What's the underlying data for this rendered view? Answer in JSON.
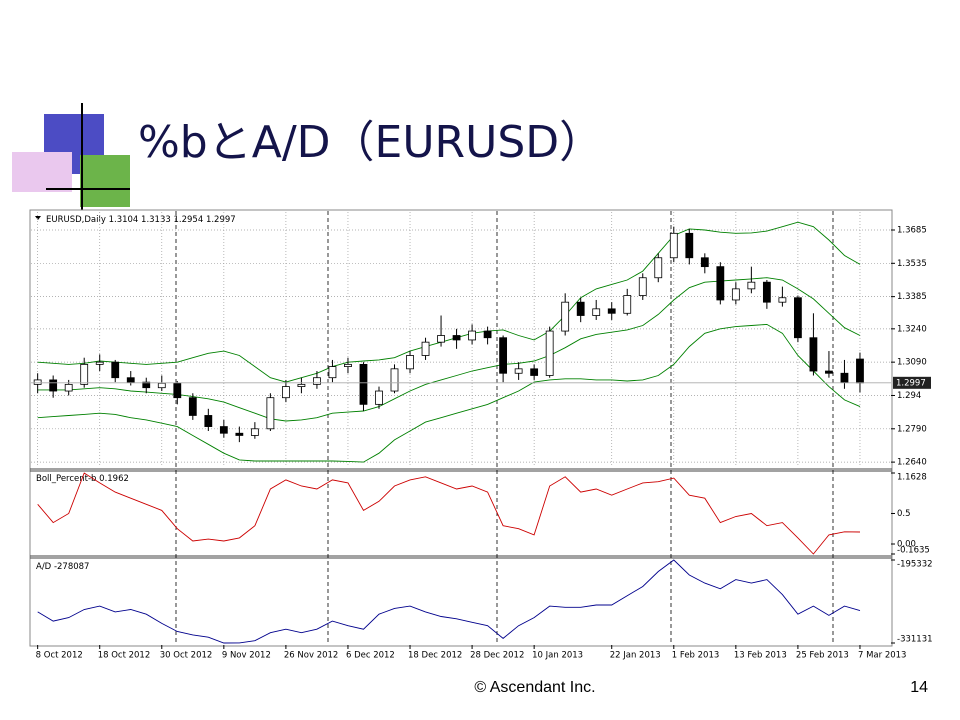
{
  "slide": {
    "title": "%bとA/D（EURUSD）",
    "footer": "© Ascendant Inc.",
    "page": "14"
  },
  "chart_data": [
    {
      "type": "candlestick",
      "symbol": "EURUSD,Daily",
      "candles": [
        [
          1.299,
          1.304,
          1.295,
          1.301
        ],
        [
          1.301,
          1.303,
          1.293,
          1.296
        ],
        [
          1.296,
          1.301,
          1.294,
          1.299
        ],
        [
          1.299,
          1.311,
          1.2975,
          1.308
        ],
        [
          1.308,
          1.3125,
          1.305,
          1.309
        ],
        [
          1.309,
          1.31,
          1.3,
          1.302
        ],
        [
          1.302,
          1.305,
          1.2985,
          1.3
        ],
        [
          1.3,
          1.302,
          1.295,
          1.2975
        ],
        [
          1.2975,
          1.303,
          1.296,
          1.2995
        ],
        [
          1.2995,
          1.3005,
          1.29,
          1.293
        ],
        [
          1.293,
          1.295,
          1.283,
          1.285
        ],
        [
          1.285,
          1.288,
          1.278,
          1.28
        ],
        [
          1.28,
          1.283,
          1.275,
          1.277
        ],
        [
          1.277,
          1.28,
          1.273,
          1.276
        ],
        [
          1.276,
          1.282,
          1.2745,
          1.279
        ],
        [
          1.279,
          1.295,
          1.278,
          1.293
        ],
        [
          1.293,
          1.301,
          1.291,
          1.298
        ],
        [
          1.298,
          1.302,
          1.295,
          1.299
        ],
        [
          1.299,
          1.305,
          1.297,
          1.302
        ],
        [
          1.302,
          1.31,
          1.3,
          1.307
        ],
        [
          1.307,
          1.311,
          1.304,
          1.308
        ],
        [
          1.308,
          1.309,
          1.287,
          1.29
        ],
        [
          1.29,
          1.298,
          1.288,
          1.296
        ],
        [
          1.296,
          1.308,
          1.295,
          1.306
        ],
        [
          1.306,
          1.314,
          1.304,
          1.312
        ],
        [
          1.312,
          1.32,
          1.31,
          1.318
        ],
        [
          1.318,
          1.33,
          1.316,
          1.321
        ],
        [
          1.321,
          1.324,
          1.315,
          1.319
        ],
        [
          1.319,
          1.326,
          1.317,
          1.323
        ],
        [
          1.323,
          1.325,
          1.317,
          1.32
        ],
        [
          1.32,
          1.321,
          1.3,
          1.304
        ],
        [
          1.304,
          1.309,
          1.301,
          1.306
        ],
        [
          1.306,
          1.308,
          1.301,
          1.303
        ],
        [
          1.303,
          1.325,
          1.302,
          1.323
        ],
        [
          1.323,
          1.34,
          1.321,
          1.336
        ],
        [
          1.336,
          1.338,
          1.327,
          1.33
        ],
        [
          1.33,
          1.337,
          1.328,
          1.333
        ],
        [
          1.333,
          1.336,
          1.328,
          1.331
        ],
        [
          1.331,
          1.342,
          1.33,
          1.339
        ],
        [
          1.339,
          1.349,
          1.337,
          1.347
        ],
        [
          1.347,
          1.358,
          1.345,
          1.356
        ],
        [
          1.356,
          1.37,
          1.354,
          1.367
        ],
        [
          1.367,
          1.369,
          1.353,
          1.356
        ],
        [
          1.356,
          1.358,
          1.349,
          1.352
        ],
        [
          1.352,
          1.354,
          1.335,
          1.337
        ],
        [
          1.337,
          1.345,
          1.335,
          1.342
        ],
        [
          1.342,
          1.352,
          1.34,
          1.345
        ],
        [
          1.345,
          1.346,
          1.333,
          1.336
        ],
        [
          1.336,
          1.343,
          1.334,
          1.338
        ],
        [
          1.338,
          1.339,
          1.318,
          1.32
        ],
        [
          1.32,
          1.331,
          1.303,
          1.305
        ],
        [
          1.305,
          1.314,
          1.302,
          1.304
        ],
        [
          1.304,
          1.31,
          1.297,
          1.3
        ],
        [
          1.3104,
          1.3133,
          1.2954,
          1.2997
        ]
      ],
      "series": [
        {
          "color": "#008000",
          "values": [
            1.309,
            1.3085,
            1.308,
            1.3085,
            1.3095,
            1.309,
            1.3085,
            1.308,
            1.3085,
            1.309,
            1.311,
            1.313,
            1.314,
            1.312,
            1.307,
            1.302,
            1.3,
            1.302,
            1.304,
            1.307,
            1.309,
            1.3095,
            1.31,
            1.311,
            1.314,
            1.316,
            1.318,
            1.32,
            1.322,
            1.323,
            1.3235,
            1.321,
            1.319,
            1.323,
            1.33,
            1.338,
            1.342,
            1.344,
            1.346,
            1.35,
            1.358,
            1.366,
            1.369,
            1.3685,
            1.3675,
            1.367,
            1.3672,
            1.368,
            1.37,
            1.372,
            1.37,
            1.364,
            1.357,
            1.353
          ]
        },
        {
          "color": "#008000",
          "values": [
            1.2965,
            1.2965,
            1.2965,
            1.297,
            1.2975,
            1.297,
            1.296,
            1.2955,
            1.295,
            1.2945,
            1.2935,
            1.2925,
            1.291,
            1.2885,
            1.286,
            1.2835,
            1.2825,
            1.283,
            1.284,
            1.286,
            1.2865,
            1.287,
            1.289,
            1.2925,
            1.296,
            1.299,
            1.301,
            1.303,
            1.305,
            1.3065,
            1.308,
            1.3085,
            1.3095,
            1.312,
            1.3155,
            1.3195,
            1.3215,
            1.3225,
            1.3235,
            1.3255,
            1.3305,
            1.337,
            1.3425,
            1.345,
            1.3455,
            1.346,
            1.3465,
            1.347,
            1.346,
            1.342,
            1.3375,
            1.331,
            1.3245,
            1.321
          ]
        },
        {
          "color": "#008000",
          "values": [
            1.284,
            1.2845,
            1.285,
            1.2855,
            1.286,
            1.2855,
            1.284,
            1.283,
            1.2815,
            1.28,
            1.276,
            1.272,
            1.268,
            1.265,
            1.2645,
            1.2645,
            1.2645,
            1.2645,
            1.2645,
            1.2645,
            1.2643,
            1.264,
            1.268,
            1.274,
            1.278,
            1.282,
            1.284,
            1.286,
            1.288,
            1.29,
            1.293,
            1.296,
            1.3,
            1.301,
            1.3015,
            1.3015,
            1.301,
            1.301,
            1.3005,
            1.301,
            1.303,
            1.308,
            1.316,
            1.322,
            1.324,
            1.325,
            1.3255,
            1.326,
            1.322,
            1.312,
            1.305,
            1.298,
            1.292,
            1.289
          ]
        }
      ],
      "bull_color": "#ffffff",
      "bear_color": "#000000",
      "xlim": [
        -0.3,
        55
      ],
      "xticks": [
        {
          "value": 0,
          "label": "8 Oct 2012"
        },
        {
          "value": 4,
          "label": "18 Oct 2012"
        },
        {
          "value": 8,
          "label": "30 Oct 2012"
        },
        {
          "value": 12,
          "label": "9 Nov 2012"
        },
        {
          "value": 16,
          "label": "26 Nov 2012"
        },
        {
          "value": 20,
          "label": "6 Dec 2012"
        },
        {
          "value": 24,
          "label": "18 Dec 2012"
        },
        {
          "value": 28,
          "label": "28 Dec 2012"
        },
        {
          "value": 32,
          "label": "10 Jan 2013"
        },
        {
          "value": 37,
          "label": "22 Jan 2013"
        },
        {
          "value": 41,
          "label": "1 Feb 2013"
        },
        {
          "value": 45,
          "label": "13 Feb 2013"
        },
        {
          "value": 49,
          "label": "25 Feb 2013"
        },
        {
          "value": 53,
          "label": "7 Mar 2013"
        }
      ],
      "ylim": [
        1.2618,
        1.3766
      ],
      "yticks": [
        1.3685,
        1.3535,
        1.3385,
        {
          "value": 1.324,
          "label": "1.3240"
        },
        {
          "value": 1.309,
          "label": "1.3090"
        },
        1.294,
        {
          "value": 1.279,
          "label": "1.2790"
        },
        {
          "value": 1.264,
          "label": "1.2640"
        }
      ],
      "grid": true
    },
    {
      "type": "line",
      "title": "Boll_Percent-b",
      "color": "#cc0000",
      "values": [
        0.65,
        0.35,
        0.5,
        1.1628,
        1.0,
        0.85,
        0.75,
        0.65,
        0.55,
        0.25,
        0.05,
        0.08,
        0.05,
        0.1,
        0.3,
        0.9,
        1.05,
        0.95,
        0.9,
        1.05,
        1.0,
        0.55,
        0.7,
        0.95,
        1.05,
        1.1,
        1.0,
        0.9,
        0.95,
        0.85,
        0.3,
        0.25,
        0.15,
        0.95,
        1.1,
        0.85,
        0.9,
        0.8,
        0.9,
        1.0,
        1.02,
        1.08,
        0.8,
        0.75,
        0.35,
        0.45,
        0.5,
        0.3,
        0.35,
        0.1,
        -0.1635,
        0.15,
        0.2,
        0.1962
      ],
      "ylim": [
        -0.1635,
        1.1628
      ],
      "yticks": [
        1.1628,
        0.5,
        {
          "value": 0,
          "label": "0.00"
        },
        -0.1635
      ]
    },
    {
      "type": "line",
      "title": "A/D",
      "color": "#00008c",
      "values": [
        -280200,
        -295300,
        -289600,
        -276400,
        -270800,
        -280200,
        -276400,
        -284000,
        -299100,
        -312300,
        -317900,
        -321700,
        -331131,
        -331000,
        -327400,
        -314200,
        -308500,
        -314200,
        -308500,
        -295300,
        -302800,
        -308500,
        -284000,
        -274500,
        -270800,
        -280200,
        -287700,
        -291500,
        -297200,
        -302800,
        -323600,
        -302800,
        -289600,
        -270800,
        -272700,
        -272700,
        -268900,
        -268900,
        -253800,
        -238700,
        -214200,
        -195332,
        -219900,
        -233100,
        -242500,
        -227400,
        -233100,
        -227400,
        -251900,
        -284000,
        -270800,
        -285900,
        -270800,
        -278087
      ],
      "ylim": [
        -331131,
        -195332
      ],
      "yticks": [
        -195332,
        -331131
      ]
    }
  ]
}
